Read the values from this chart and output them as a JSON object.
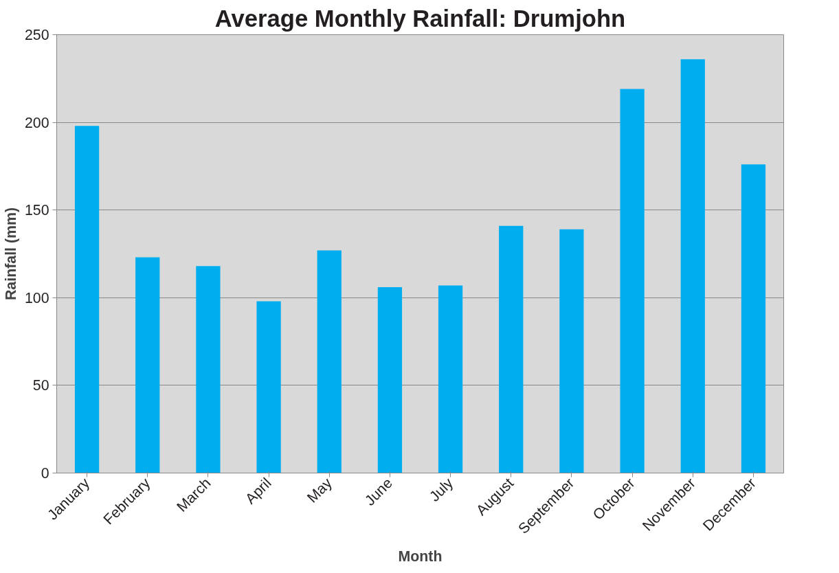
{
  "chart_data": {
    "type": "bar",
    "title": "Average Monthly Rainfall: Drumjohn",
    "xlabel": "Month",
    "ylabel": "Rainfall (mm)",
    "categories": [
      "January",
      "February",
      "March",
      "April",
      "May",
      "June",
      "July",
      "August",
      "September",
      "October",
      "November",
      "December"
    ],
    "values": [
      198,
      123,
      118,
      98,
      127,
      106,
      107,
      141,
      139,
      219,
      236,
      176
    ],
    "color": "#00aeef",
    "ylim": [
      0,
      250
    ],
    "yticks": [
      0,
      50,
      100,
      150,
      200,
      250
    ],
    "grid": "y"
  }
}
